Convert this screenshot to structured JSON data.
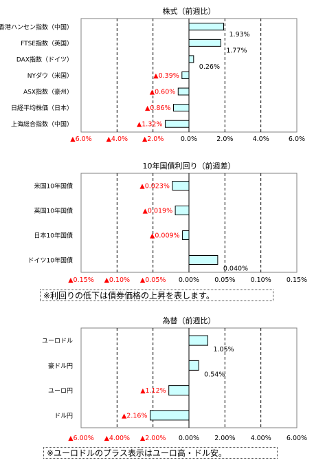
{
  "chart_data": [
    {
      "type": "bar",
      "orientation": "horizontal",
      "title": "株式（前週比）",
      "categories": [
        "香港ハンセン指数（中国）",
        "FTSE指数（英国）",
        "DAX指数（ドイツ）",
        "NYダウ（米国）",
        "ASX指数（豪州）",
        "日経平均株価（日本）",
        "上海総合指数（中国）"
      ],
      "values": [
        1.93,
        1.77,
        0.26,
        -0.39,
        -0.6,
        -0.86,
        -1.32
      ],
      "value_labels": [
        "1.93%",
        "1.77%",
        "0.26%",
        "▲0.39%",
        "▲0.60%",
        "▲0.86%",
        "▲1.32%"
      ],
      "xlim": [
        -6,
        6
      ],
      "ticks": [
        -6,
        -4,
        -2,
        0,
        2,
        4,
        6
      ],
      "tick_labels": [
        "▲6.0%",
        "▲4.0%",
        "▲2.0%",
        "0.0%",
        "2.0%",
        "4.0%",
        "6.0%"
      ],
      "gridlines": "vertical-dashed",
      "legend": "none"
    },
    {
      "type": "bar",
      "orientation": "horizontal",
      "title": "10年国債利回り（前週差）",
      "categories": [
        "米国10年国債",
        "英国10年国債",
        "日本10年国債",
        "ドイツ10年国債"
      ],
      "values": [
        -0.023,
        -0.019,
        -0.009,
        0.04
      ],
      "value_labels": [
        "▲0.023%",
        "▲0.019%",
        "▲0.009%",
        "0.040%"
      ],
      "xlim": [
        -0.15,
        0.15
      ],
      "ticks": [
        -0.15,
        -0.1,
        -0.05,
        0,
        0.05,
        0.1,
        0.15
      ],
      "tick_labels": [
        "▲0.15%",
        "▲0.10%",
        "▲0.05%",
        "0.00%",
        "0.05%",
        "0.10%",
        "0.15%"
      ],
      "gridlines": "vertical-dashed",
      "legend": "none",
      "note": "※利回りの低下は債券価格の上昇を表します。"
    },
    {
      "type": "bar",
      "orientation": "horizontal",
      "title": "為替（前週比）",
      "categories": [
        "ユーロドル",
        "豪ドル円",
        "ユーロ円",
        "ドル円"
      ],
      "values": [
        1.05,
        0.54,
        -1.12,
        -2.16
      ],
      "value_labels": [
        "1.05%",
        "0.54%",
        "▲1.12%",
        "▲2.16%"
      ],
      "xlim": [
        -6,
        6
      ],
      "ticks": [
        -6,
        -4,
        -2,
        0,
        2,
        4,
        6
      ],
      "tick_labels": [
        "▲6.00%",
        "▲4.00%",
        "▲2.00%",
        "0.00%",
        "2.00%",
        "4.00%",
        "6.00%"
      ],
      "gridlines": "vertical-dashed",
      "legend": "none",
      "note": "※ユーロドルのプラス表示はユーロ高・ドル安。"
    }
  ],
  "colors": {
    "bar_fill": "#ccffff",
    "bar_stroke": "#000000",
    "negative_text": "#ff0000",
    "positive_text": "#000000",
    "grid": "#000000"
  }
}
